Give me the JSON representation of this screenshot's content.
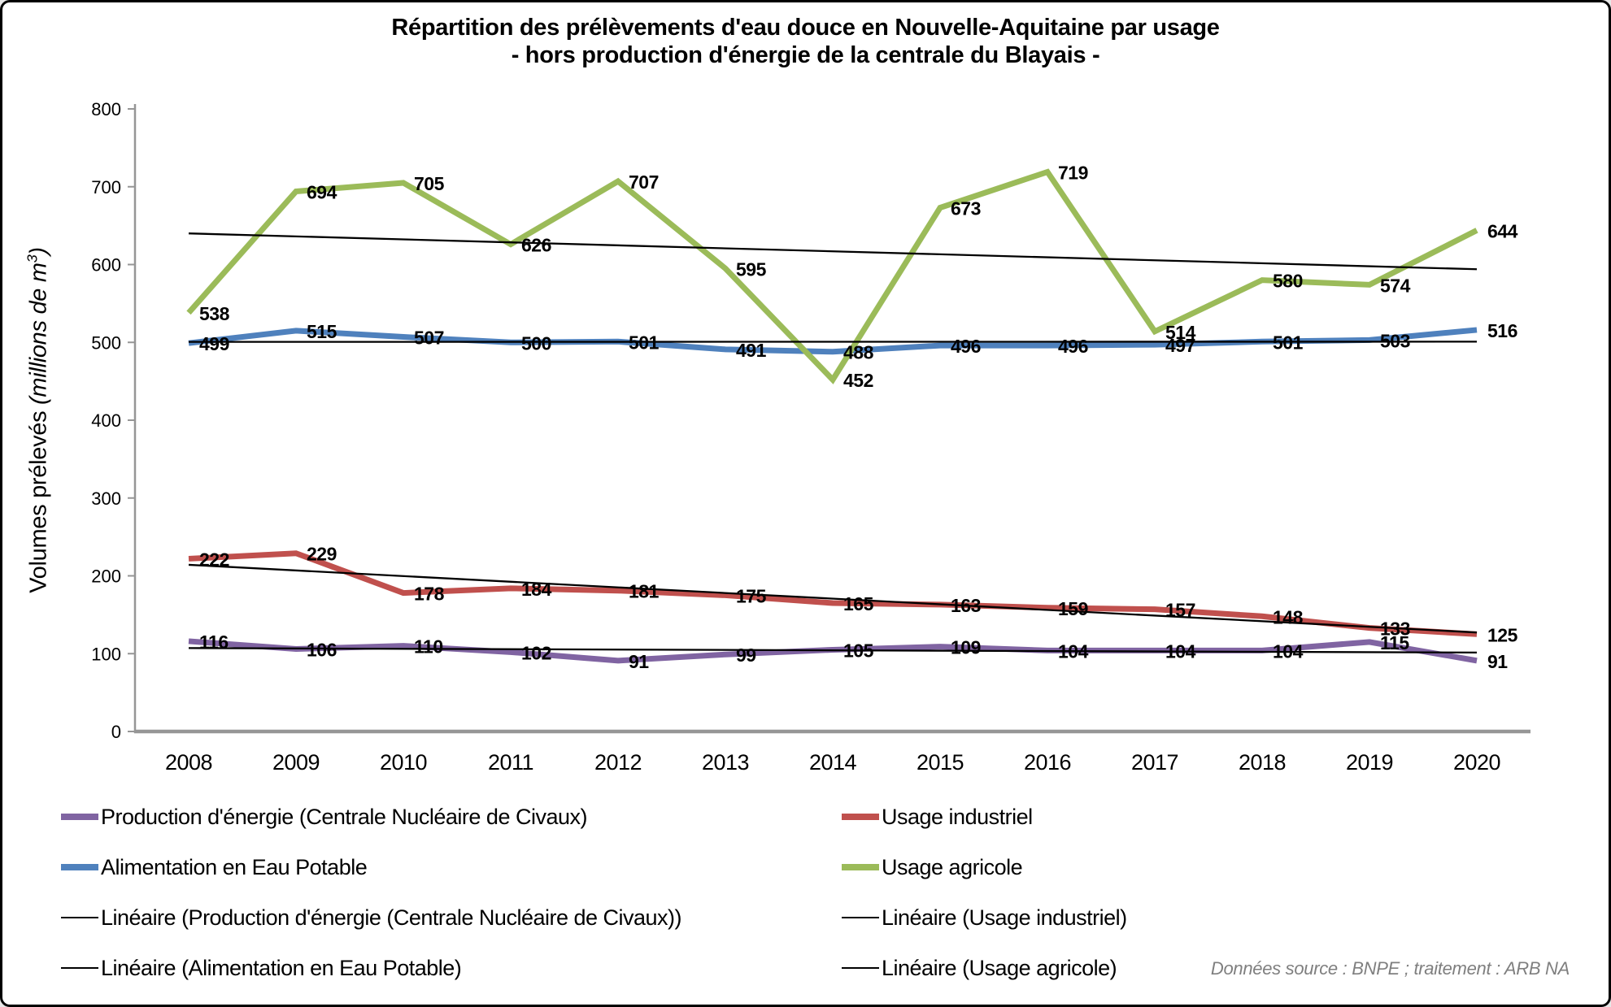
{
  "title": {
    "line1": "Répartition des prélèvements d'eau douce en Nouvelle-Aquitaine par usage",
    "line2": "- hors production d'énergie de la centrale du Blayais -"
  },
  "y_axis_label": {
    "regular": "Volumes prélevés ",
    "italic_open": "(millions de m",
    "superscript": "3",
    "italic_close": ")"
  },
  "source_note": "Données source : BNPE ; traitement : ARB NA",
  "chart_data": {
    "type": "line",
    "categories": [
      "2008",
      "2009",
      "2010",
      "2011",
      "2012",
      "2013",
      "2014",
      "2015",
      "2016",
      "2017",
      "2018",
      "2019",
      "2020"
    ],
    "xlabel": "",
    "ylabel": "Volumes prélevés (millions de m³)",
    "ylim": [
      0,
      800
    ],
    "ytick_step": 100,
    "grid": false,
    "legend_position": "bottom",
    "data_labels": true,
    "axis_color": "#969696",
    "trendline_color": "#000000",
    "series": [
      {
        "name": "Production d'énergie (Centrale Nucléaire de Civaux)",
        "color": "#8064A2",
        "trendline": true,
        "values": [
          116,
          106,
          110,
          102,
          91,
          99,
          105,
          109,
          104,
          104,
          104,
          115,
          91
        ]
      },
      {
        "name": "Usage industriel",
        "color": "#C0504D",
        "trendline": true,
        "values": [
          222,
          229,
          178,
          184,
          181,
          175,
          165,
          163,
          159,
          157,
          148,
          133,
          125
        ]
      },
      {
        "name": "Alimentation en Eau Potable",
        "color": "#4F81BD",
        "trendline": true,
        "values": [
          499,
          515,
          507,
          500,
          501,
          491,
          488,
          496,
          496,
          497,
          501,
          503,
          516
        ]
      },
      {
        "name": "Usage agricole",
        "color": "#9BBB59",
        "trendline": true,
        "values": [
          538,
          694,
          705,
          626,
          707,
          595,
          452,
          673,
          719,
          514,
          580,
          574,
          644
        ]
      }
    ]
  },
  "legend": {
    "columns": [
      [
        {
          "label": "Production d'énergie (Centrale Nucléaire de Civaux)",
          "color": "#8064A2",
          "style": "series"
        },
        {
          "label": "Alimentation en Eau Potable",
          "color": "#4F81BD",
          "style": "series"
        },
        {
          "label": "Linéaire (Production d'énergie (Centrale Nucléaire de Civaux))",
          "color": "#000000",
          "style": "trend"
        },
        {
          "label": "Linéaire (Alimentation en Eau Potable)",
          "color": "#000000",
          "style": "trend"
        }
      ],
      [
        {
          "label": "Usage industriel",
          "color": "#C0504D",
          "style": "series"
        },
        {
          "label": "Usage agricole",
          "color": "#9BBB59",
          "style": "series"
        },
        {
          "label": "Linéaire (Usage industriel)",
          "color": "#000000",
          "style": "trend"
        },
        {
          "label": "Linéaire (Usage agricole)",
          "color": "#000000",
          "style": "trend"
        }
      ]
    ]
  }
}
